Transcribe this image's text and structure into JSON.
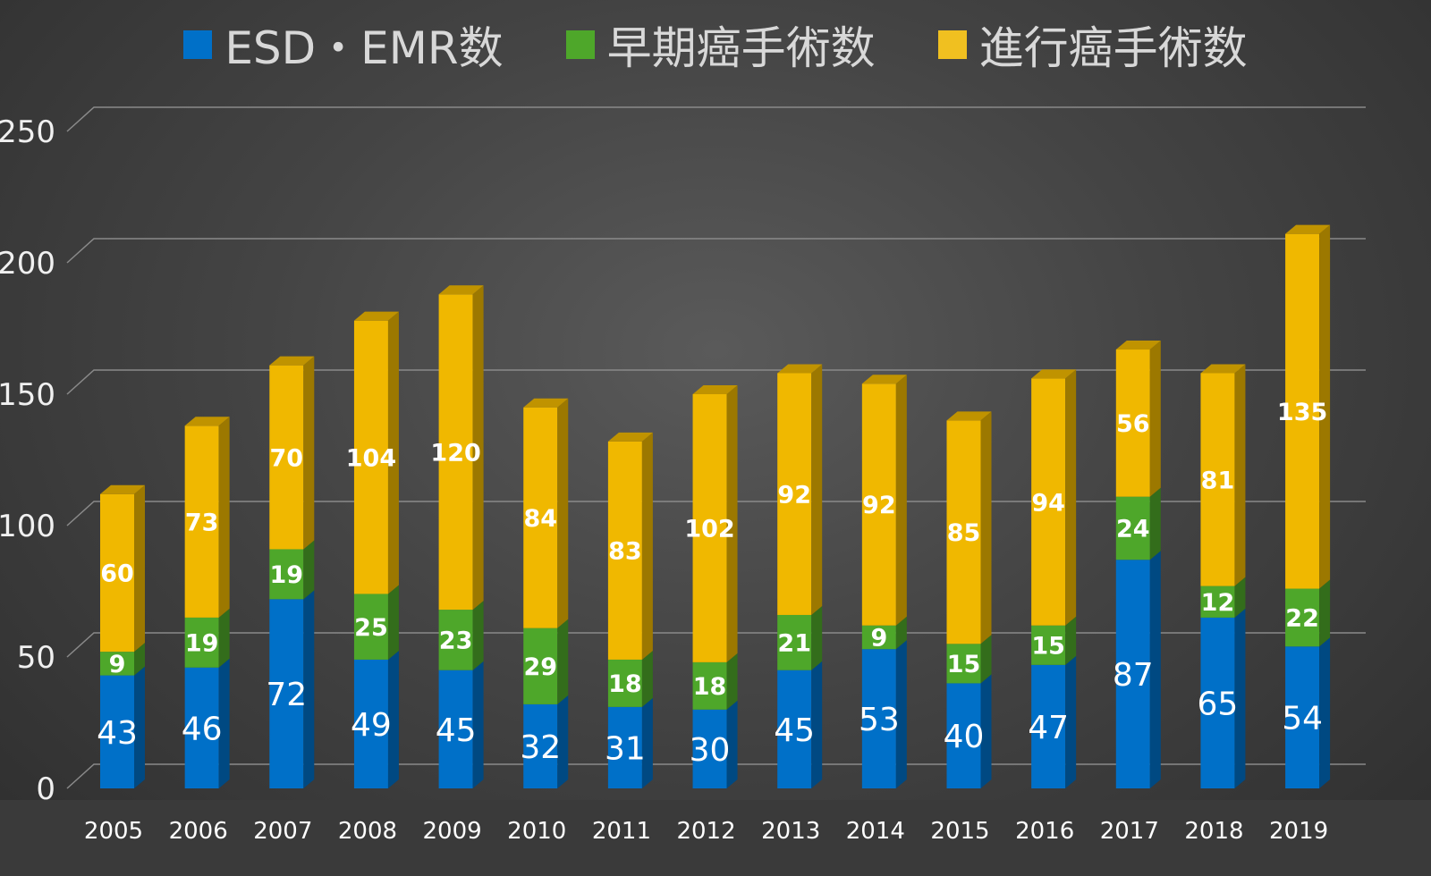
{
  "chart_data": {
    "type": "bar",
    "stacked": true,
    "style": "3d-column",
    "categories": [
      "2005",
      "2006",
      "2007",
      "2008",
      "2009",
      "2010",
      "2011",
      "2012",
      "2013",
      "2014",
      "2015",
      "2016",
      "2017",
      "2018",
      "2019"
    ],
    "series": [
      {
        "name": "ESD・EMR数",
        "color": "#0070c8",
        "values": [
          43,
          46,
          72,
          49,
          45,
          32,
          31,
          30,
          45,
          53,
          40,
          47,
          87,
          65,
          54
        ]
      },
      {
        "name": "早期癌手術数",
        "color": "#4ea72a",
        "values": [
          9,
          19,
          19,
          25,
          23,
          29,
          18,
          18,
          21,
          9,
          15,
          15,
          24,
          12,
          22
        ]
      },
      {
        "name": "進行癌手術数",
        "color": "#f0b800",
        "values": [
          60,
          73,
          70,
          104,
          120,
          84,
          83,
          102,
          92,
          92,
          85,
          94,
          56,
          81,
          135
        ]
      }
    ],
    "yticks": [
      0,
      50,
      100,
      150,
      200,
      250
    ],
    "ylim": [
      0,
      250
    ],
    "grid": true,
    "legend": "top",
    "data_labels": true
  }
}
